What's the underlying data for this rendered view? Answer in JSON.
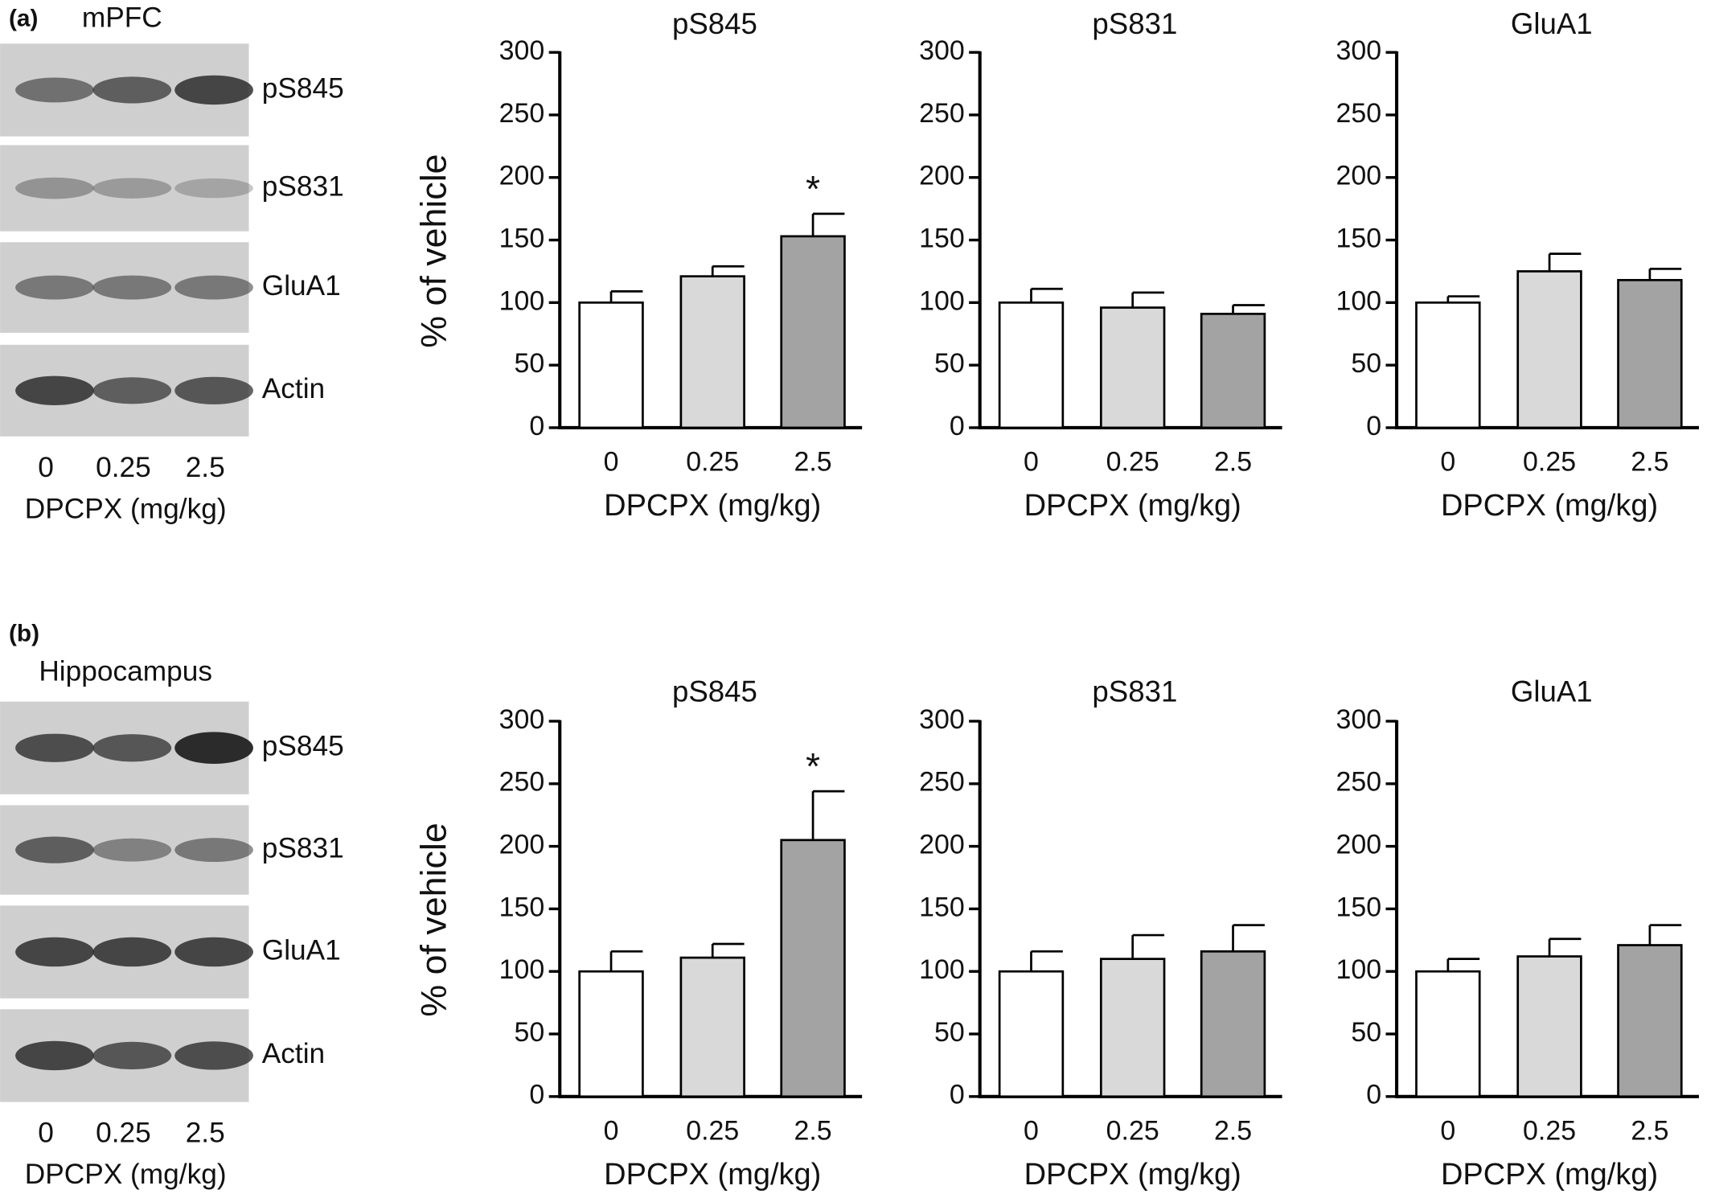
{
  "blots": [
    {
      "panel": "(a)",
      "region": "mPFC",
      "bands": [
        "pS845",
        "pS831",
        "GluA1",
        "Actin"
      ],
      "lanes": [
        "0",
        "0.25",
        "2.5"
      ],
      "xlabel": "DPCPX (mg/kg)"
    },
    {
      "panel": "(b)",
      "region": "Hippocampus",
      "bands": [
        "pS845",
        "pS831",
        "GluA1",
        "Actin"
      ],
      "lanes": [
        "0",
        "0.25",
        "2.5"
      ],
      "xlabel": "DPCPX (mg/kg)"
    }
  ],
  "chart_data": [
    {
      "type": "bar",
      "title": "pS845",
      "ylabel": "% of vehicle",
      "xlabel": "DPCPX (mg/kg)",
      "categories": [
        "0",
        "0.25",
        "2.5"
      ],
      "values": [
        100,
        121,
        153
      ],
      "errors": [
        9,
        8,
        18
      ],
      "colors": [
        "#ffffff",
        "#d9d9d9",
        "#a3a3a3"
      ],
      "significance": [
        null,
        null,
        "*"
      ],
      "ylim": [
        0,
        300
      ],
      "yticks": [
        0,
        50,
        100,
        150,
        200,
        250,
        300
      ]
    },
    {
      "type": "bar",
      "title": "pS831",
      "xlabel": "DPCPX (mg/kg)",
      "categories": [
        "0",
        "0.25",
        "2.5"
      ],
      "values": [
        100,
        96,
        91
      ],
      "errors": [
        11,
        12,
        7
      ],
      "colors": [
        "#ffffff",
        "#d9d9d9",
        "#a3a3a3"
      ],
      "ylim": [
        0,
        300
      ],
      "yticks": [
        0,
        50,
        100,
        150,
        200,
        250,
        300
      ]
    },
    {
      "type": "bar",
      "title": "GluA1",
      "xlabel": "DPCPX (mg/kg)",
      "categories": [
        "0",
        "0.25",
        "2.5"
      ],
      "values": [
        100,
        125,
        118
      ],
      "errors": [
        5,
        14,
        9
      ],
      "colors": [
        "#ffffff",
        "#d9d9d9",
        "#a3a3a3"
      ],
      "ylim": [
        0,
        300
      ],
      "yticks": [
        0,
        50,
        100,
        150,
        200,
        250,
        300
      ]
    },
    {
      "type": "bar",
      "title": "pS845",
      "ylabel": "% of vehicle",
      "xlabel": "DPCPX (mg/kg)",
      "categories": [
        "0",
        "0.25",
        "2.5"
      ],
      "values": [
        100,
        111,
        205
      ],
      "errors": [
        16,
        11,
        39
      ],
      "colors": [
        "#ffffff",
        "#d9d9d9",
        "#a3a3a3"
      ],
      "significance": [
        null,
        null,
        "*"
      ],
      "ylim": [
        0,
        300
      ],
      "yticks": [
        0,
        50,
        100,
        150,
        200,
        250,
        300
      ]
    },
    {
      "type": "bar",
      "title": "pS831",
      "xlabel": "DPCPX (mg/kg)",
      "categories": [
        "0",
        "0.25",
        "2.5"
      ],
      "values": [
        100,
        110,
        116
      ],
      "errors": [
        16,
        19,
        21
      ],
      "colors": [
        "#ffffff",
        "#d9d9d9",
        "#a3a3a3"
      ],
      "ylim": [
        0,
        300
      ],
      "yticks": [
        0,
        50,
        100,
        150,
        200,
        250,
        300
      ]
    },
    {
      "type": "bar",
      "title": "GluA1",
      "xlabel": "DPCPX (mg/kg)",
      "categories": [
        "0",
        "0.25",
        "2.5"
      ],
      "values": [
        100,
        112,
        121
      ],
      "errors": [
        10,
        14,
        16
      ],
      "colors": [
        "#ffffff",
        "#d9d9d9",
        "#a3a3a3"
      ],
      "ylim": [
        0,
        300
      ],
      "yticks": [
        0,
        50,
        100,
        150,
        200,
        250,
        300
      ]
    }
  ]
}
